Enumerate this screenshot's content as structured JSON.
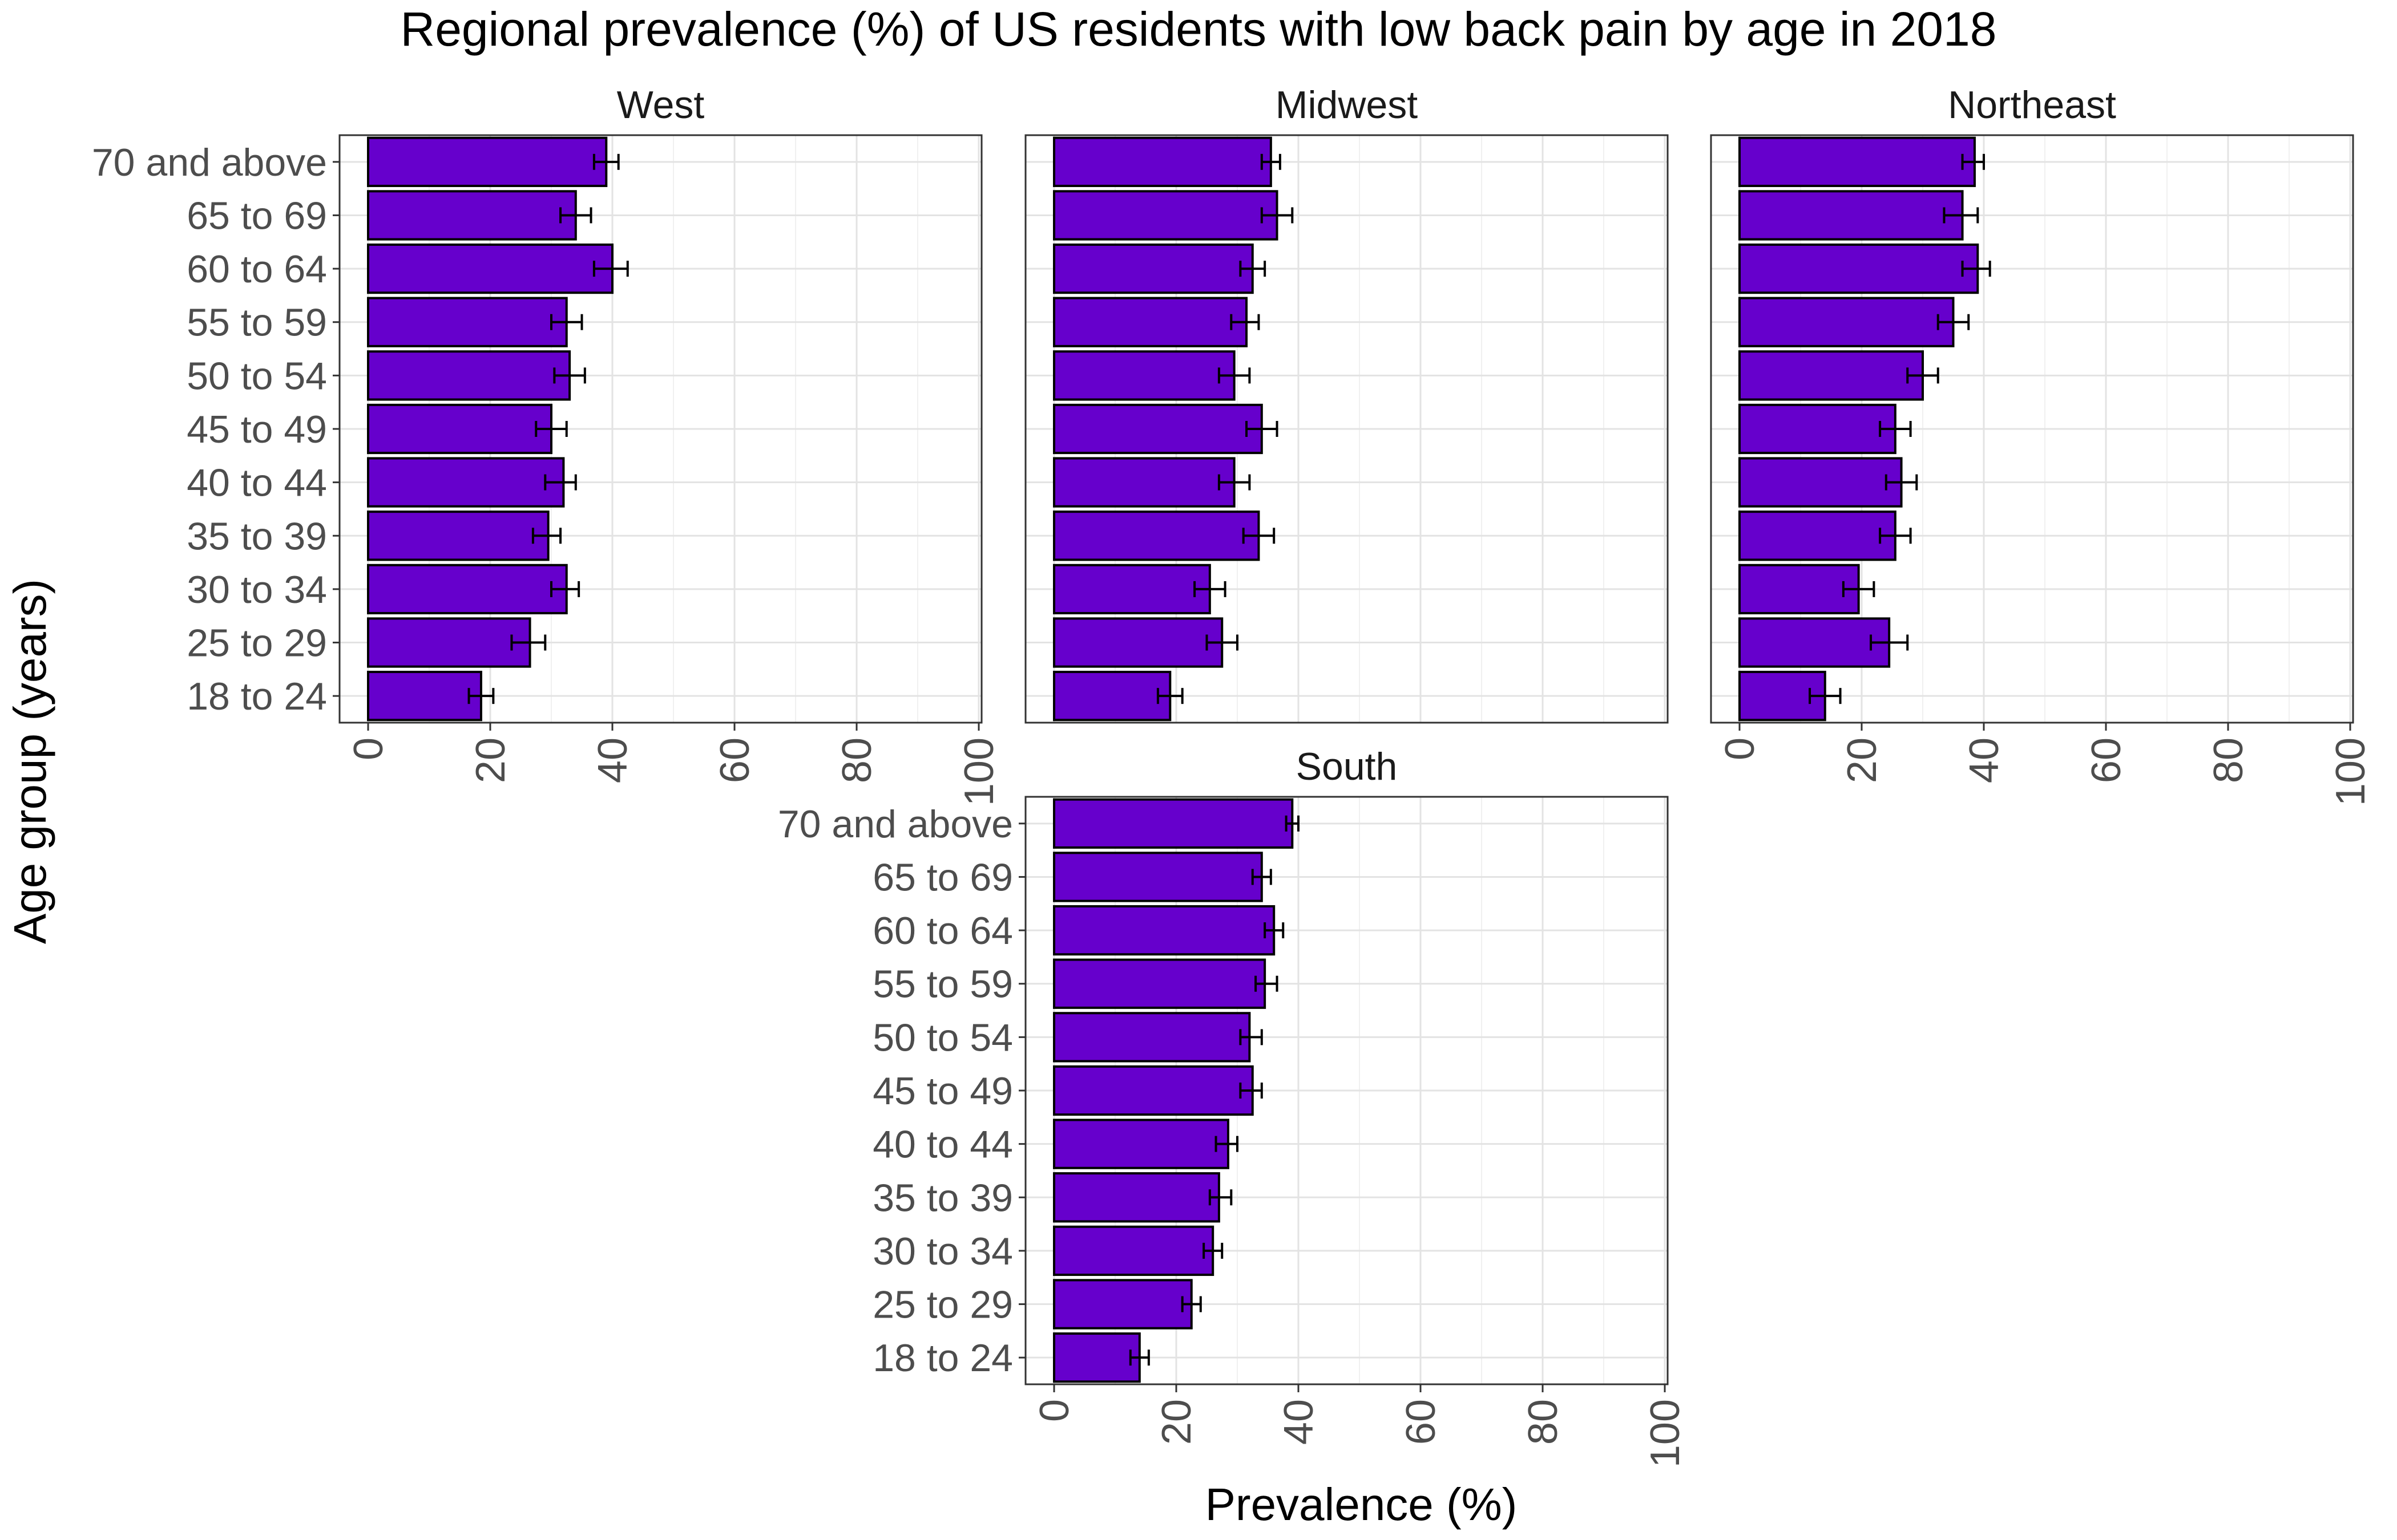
{
  "chart_data": {
    "type": "bar",
    "orientation": "horizontal",
    "title": "Regional prevalence (%) of US residents with low back pain by age in 2018",
    "xlabel": "Prevalence (%)",
    "ylabel": "Age group (years)",
    "xlim": [
      0,
      100
    ],
    "xticks": [
      "0",
      "20",
      "40",
      "60",
      "80",
      "100"
    ],
    "grid": true,
    "bar_color": "#6600cc",
    "categories": [
      "18 to 24",
      "25 to 29",
      "30 to 34",
      "35 to 39",
      "40 to 44",
      "45 to 49",
      "50 to 54",
      "55 to 59",
      "60 to 64",
      "65 to 69",
      "70 and above"
    ],
    "panels": [
      {
        "name": "West",
        "values": [
          18.5,
          26.5,
          32.5,
          29.5,
          32.0,
          30.0,
          33.0,
          32.5,
          40.0,
          34.0,
          39.0
        ],
        "error_low": [
          16.5,
          23.5,
          30.0,
          27.0,
          29.0,
          27.5,
          30.5,
          30.0,
          37.0,
          31.5,
          37.0
        ],
        "error_high": [
          20.5,
          29.0,
          34.5,
          31.5,
          34.0,
          32.5,
          35.5,
          35.0,
          42.5,
          36.5,
          41.0
        ]
      },
      {
        "name": "Midwest",
        "values": [
          19.0,
          27.5,
          25.5,
          33.5,
          29.5,
          34.0,
          29.5,
          31.5,
          32.5,
          36.5,
          35.5
        ],
        "error_low": [
          17.0,
          25.0,
          23.0,
          31.0,
          27.0,
          31.5,
          27.0,
          29.0,
          30.5,
          34.0,
          34.0
        ],
        "error_high": [
          21.0,
          30.0,
          28.0,
          36.0,
          32.0,
          36.5,
          32.0,
          33.5,
          34.5,
          39.0,
          37.0
        ]
      },
      {
        "name": "Northeast",
        "values": [
          14.0,
          24.5,
          19.5,
          25.5,
          26.5,
          25.5,
          30.0,
          35.0,
          39.0,
          36.5,
          38.5
        ],
        "error_low": [
          11.5,
          21.5,
          17.0,
          23.0,
          24.0,
          23.0,
          27.5,
          32.5,
          36.5,
          33.5,
          36.5
        ],
        "error_high": [
          16.5,
          27.5,
          22.0,
          28.0,
          29.0,
          28.0,
          32.5,
          37.5,
          41.0,
          39.0,
          40.0
        ]
      },
      {
        "name": "South",
        "values": [
          14.0,
          22.5,
          26.0,
          27.0,
          28.5,
          32.5,
          32.0,
          34.5,
          36.0,
          34.0,
          39.0
        ],
        "error_low": [
          12.5,
          21.0,
          24.5,
          25.5,
          26.5,
          30.5,
          30.5,
          33.0,
          34.5,
          32.5,
          38.0
        ],
        "error_high": [
          15.5,
          24.0,
          27.5,
          29.0,
          30.0,
          34.0,
          34.0,
          36.5,
          37.5,
          35.5,
          40.0
        ]
      }
    ]
  }
}
